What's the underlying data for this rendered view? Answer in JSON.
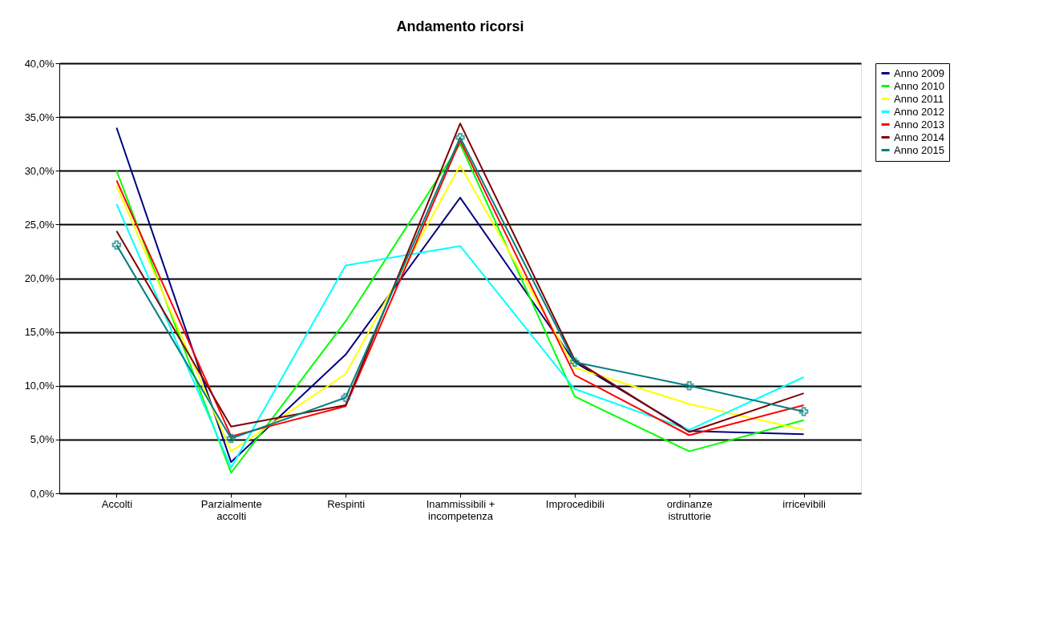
{
  "chart_data": {
    "type": "line",
    "title": "Andamento ricorsi",
    "categories": [
      "Accolti",
      "Parzialmente\naccolti",
      "Respinti",
      "Inammissibili +\nincompetenza",
      "Improcedibili",
      "ordinanze\nistruttorie",
      "irricevibili"
    ],
    "series": [
      {
        "name": "Anno 2009",
        "color": "#000080",
        "values": [
          34.0,
          2.9,
          12.9,
          27.5,
          12.2,
          5.8,
          5.5
        ]
      },
      {
        "name": "Anno 2010",
        "color": "#00ff00",
        "values": [
          30.0,
          1.9,
          16.0,
          32.5,
          9.0,
          3.9,
          6.8
        ]
      },
      {
        "name": "Anno 2011",
        "color": "#ffff00",
        "values": [
          28.6,
          3.9,
          11.1,
          30.5,
          11.7,
          8.3,
          5.9
        ]
      },
      {
        "name": "Anno 2012",
        "color": "#00ffff",
        "values": [
          26.9,
          2.4,
          21.2,
          23.0,
          9.7,
          5.9,
          10.8
        ]
      },
      {
        "name": "Anno 2013",
        "color": "#ff0000",
        "values": [
          29.1,
          5.3,
          8.1,
          32.8,
          11.0,
          5.4,
          8.2
        ]
      },
      {
        "name": "Anno 2014",
        "color": "#800000",
        "values": [
          24.4,
          6.2,
          8.2,
          34.4,
          12.4,
          5.7,
          9.3
        ]
      },
      {
        "name": "Anno 2015",
        "color": "#008080",
        "values": [
          23.1,
          5.1,
          8.9,
          33.1,
          12.2,
          10.0,
          7.6
        ],
        "marker": "cross"
      }
    ],
    "ylim": [
      0,
      40
    ],
    "yticks": [
      {
        "value": 0,
        "label": "0,0%"
      },
      {
        "value": 5,
        "label": "5,0%"
      },
      {
        "value": 10,
        "label": "10,0%"
      },
      {
        "value": 15,
        "label": "15,0%"
      },
      {
        "value": 20,
        "label": "20,0%"
      },
      {
        "value": 25,
        "label": "25,0%"
      },
      {
        "value": 30,
        "label": "30,0%"
      },
      {
        "value": 35,
        "label": "35,0%"
      },
      {
        "value": 40,
        "label": "40,0%"
      }
    ],
    "grid": "y",
    "legend": "right"
  }
}
